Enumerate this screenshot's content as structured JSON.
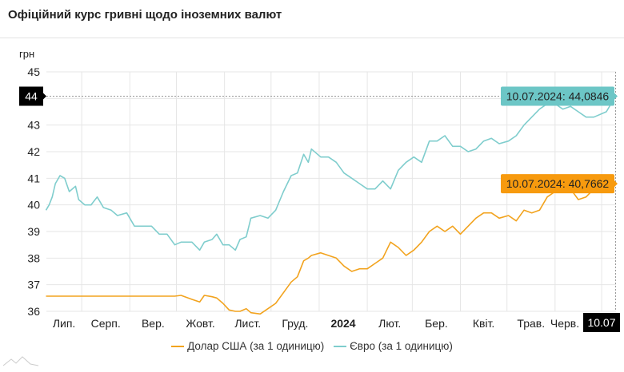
{
  "title": "Офіційний курс гривні щодо іноземних валют",
  "colors": {
    "usd": "#f2a31e",
    "eur": "#7fcdcd",
    "usd_tooltip": "#f79a0e",
    "eur_tooltip": "#6cc6c6",
    "crosshair_label": "#000000"
  },
  "chart_data": {
    "type": "line",
    "title": "",
    "ylabel": "грн",
    "xlabel": "",
    "ylim": [
      36,
      45
    ],
    "yticks": [
      "36",
      "37",
      "38",
      "39",
      "40",
      "41",
      "42",
      "43",
      "44",
      "45"
    ],
    "xticks": [
      "Лип.",
      "Серп.",
      "Вер.",
      "Жовт.",
      "Лист.",
      "Груд.",
      "2024",
      "Лют.",
      "Бер.",
      "Квіт.",
      "Трав.",
      "Черв."
    ],
    "grid": true,
    "legend_position": "bottom",
    "x": [
      "2023-07-09",
      "2023-07-11",
      "2023-07-13",
      "2023-07-15",
      "2023-07-18",
      "2023-07-21",
      "2023-07-24",
      "2023-07-28",
      "2023-07-30",
      "2023-08-03",
      "2023-08-07",
      "2023-08-11",
      "2023-08-15",
      "2023-08-20",
      "2023-08-24",
      "2023-08-30",
      "2023-09-04",
      "2023-09-10",
      "2023-09-15",
      "2023-09-20",
      "2023-09-25",
      "2023-09-30",
      "2023-10-04",
      "2023-10-11",
      "2023-10-16",
      "2023-10-19",
      "2023-10-24",
      "2023-10-27",
      "2023-10-31",
      "2023-11-04",
      "2023-11-08",
      "2023-11-11",
      "2023-11-15",
      "2023-11-18",
      "2023-11-24",
      "2023-11-29",
      "2023-12-04",
      "2023-12-09",
      "2023-12-14",
      "2023-12-18",
      "2023-12-22",
      "2023-12-25",
      "2023-12-27",
      "2024-01-02",
      "2024-01-07",
      "2024-01-12",
      "2024-01-17",
      "2024-01-22",
      "2024-01-27",
      "2024-02-01",
      "2024-02-06",
      "2024-02-11",
      "2024-02-16",
      "2024-02-21",
      "2024-02-26",
      "2024-03-02",
      "2024-03-07",
      "2024-03-12",
      "2024-03-17",
      "2024-03-22",
      "2024-03-27",
      "2024-04-01",
      "2024-04-06",
      "2024-04-11",
      "2024-04-16",
      "2024-04-21",
      "2024-04-26",
      "2024-05-02",
      "2024-05-07",
      "2024-05-12",
      "2024-05-17",
      "2024-05-22",
      "2024-05-27",
      "2024-06-01",
      "2024-06-06",
      "2024-06-11",
      "2024-06-16",
      "2024-06-21",
      "2024-06-26",
      "2024-07-04",
      "2024-07-10"
    ],
    "series": [
      {
        "name": "Долар США (за 1 одиницю)",
        "key": "usd",
        "values": [
          36.57,
          36.57,
          36.57,
          36.57,
          36.57,
          36.57,
          36.57,
          36.57,
          36.57,
          36.57,
          36.57,
          36.57,
          36.57,
          36.57,
          36.57,
          36.57,
          36.57,
          36.57,
          36.57,
          36.57,
          36.57,
          36.57,
          36.6,
          36.45,
          36.35,
          36.6,
          36.55,
          36.5,
          36.3,
          36.05,
          36.0,
          36.0,
          36.1,
          35.95,
          35.9,
          36.1,
          36.3,
          36.7,
          37.1,
          37.3,
          37.9,
          38.0,
          38.1,
          38.2,
          38.1,
          38.0,
          37.7,
          37.5,
          37.6,
          37.6,
          37.8,
          38.0,
          38.6,
          38.4,
          38.1,
          38.3,
          38.6,
          39.0,
          39.2,
          39.0,
          39.2,
          38.9,
          39.2,
          39.5,
          39.7,
          39.7,
          39.5,
          39.6,
          39.4,
          39.8,
          39.7,
          39.8,
          40.3,
          40.5,
          40.7,
          40.6,
          40.2,
          40.3,
          40.6,
          40.7,
          40.7662
        ]
      },
      {
        "name": "Євро (за 1 одиницю)",
        "key": "eur",
        "values": [
          39.8,
          40.0,
          40.3,
          40.8,
          41.1,
          41.0,
          40.5,
          40.7,
          40.2,
          40.0,
          40.0,
          40.3,
          39.9,
          39.8,
          39.6,
          39.7,
          39.2,
          39.2,
          39.2,
          38.9,
          38.9,
          38.5,
          38.6,
          38.6,
          38.3,
          38.6,
          38.7,
          38.9,
          38.5,
          38.5,
          38.3,
          38.7,
          38.8,
          39.5,
          39.6,
          39.5,
          39.8,
          40.5,
          41.1,
          41.2,
          41.9,
          41.6,
          42.1,
          41.8,
          41.8,
          41.6,
          41.2,
          41.0,
          40.8,
          40.6,
          40.6,
          40.9,
          40.6,
          41.3,
          41.6,
          41.8,
          41.6,
          42.4,
          42.4,
          42.6,
          42.2,
          42.2,
          42.0,
          42.1,
          42.4,
          42.5,
          42.3,
          42.4,
          42.6,
          43.0,
          43.3,
          43.6,
          43.8,
          43.8,
          43.6,
          43.7,
          43.5,
          43.3,
          43.3,
          43.5,
          44.0846
        ]
      }
    ],
    "tooltips": {
      "eur": "10.07.2024: 44,0846",
      "usd": "10.07.2024: 40,7662"
    },
    "crosshair": {
      "y_label": "44",
      "x_label": "10.07"
    }
  }
}
